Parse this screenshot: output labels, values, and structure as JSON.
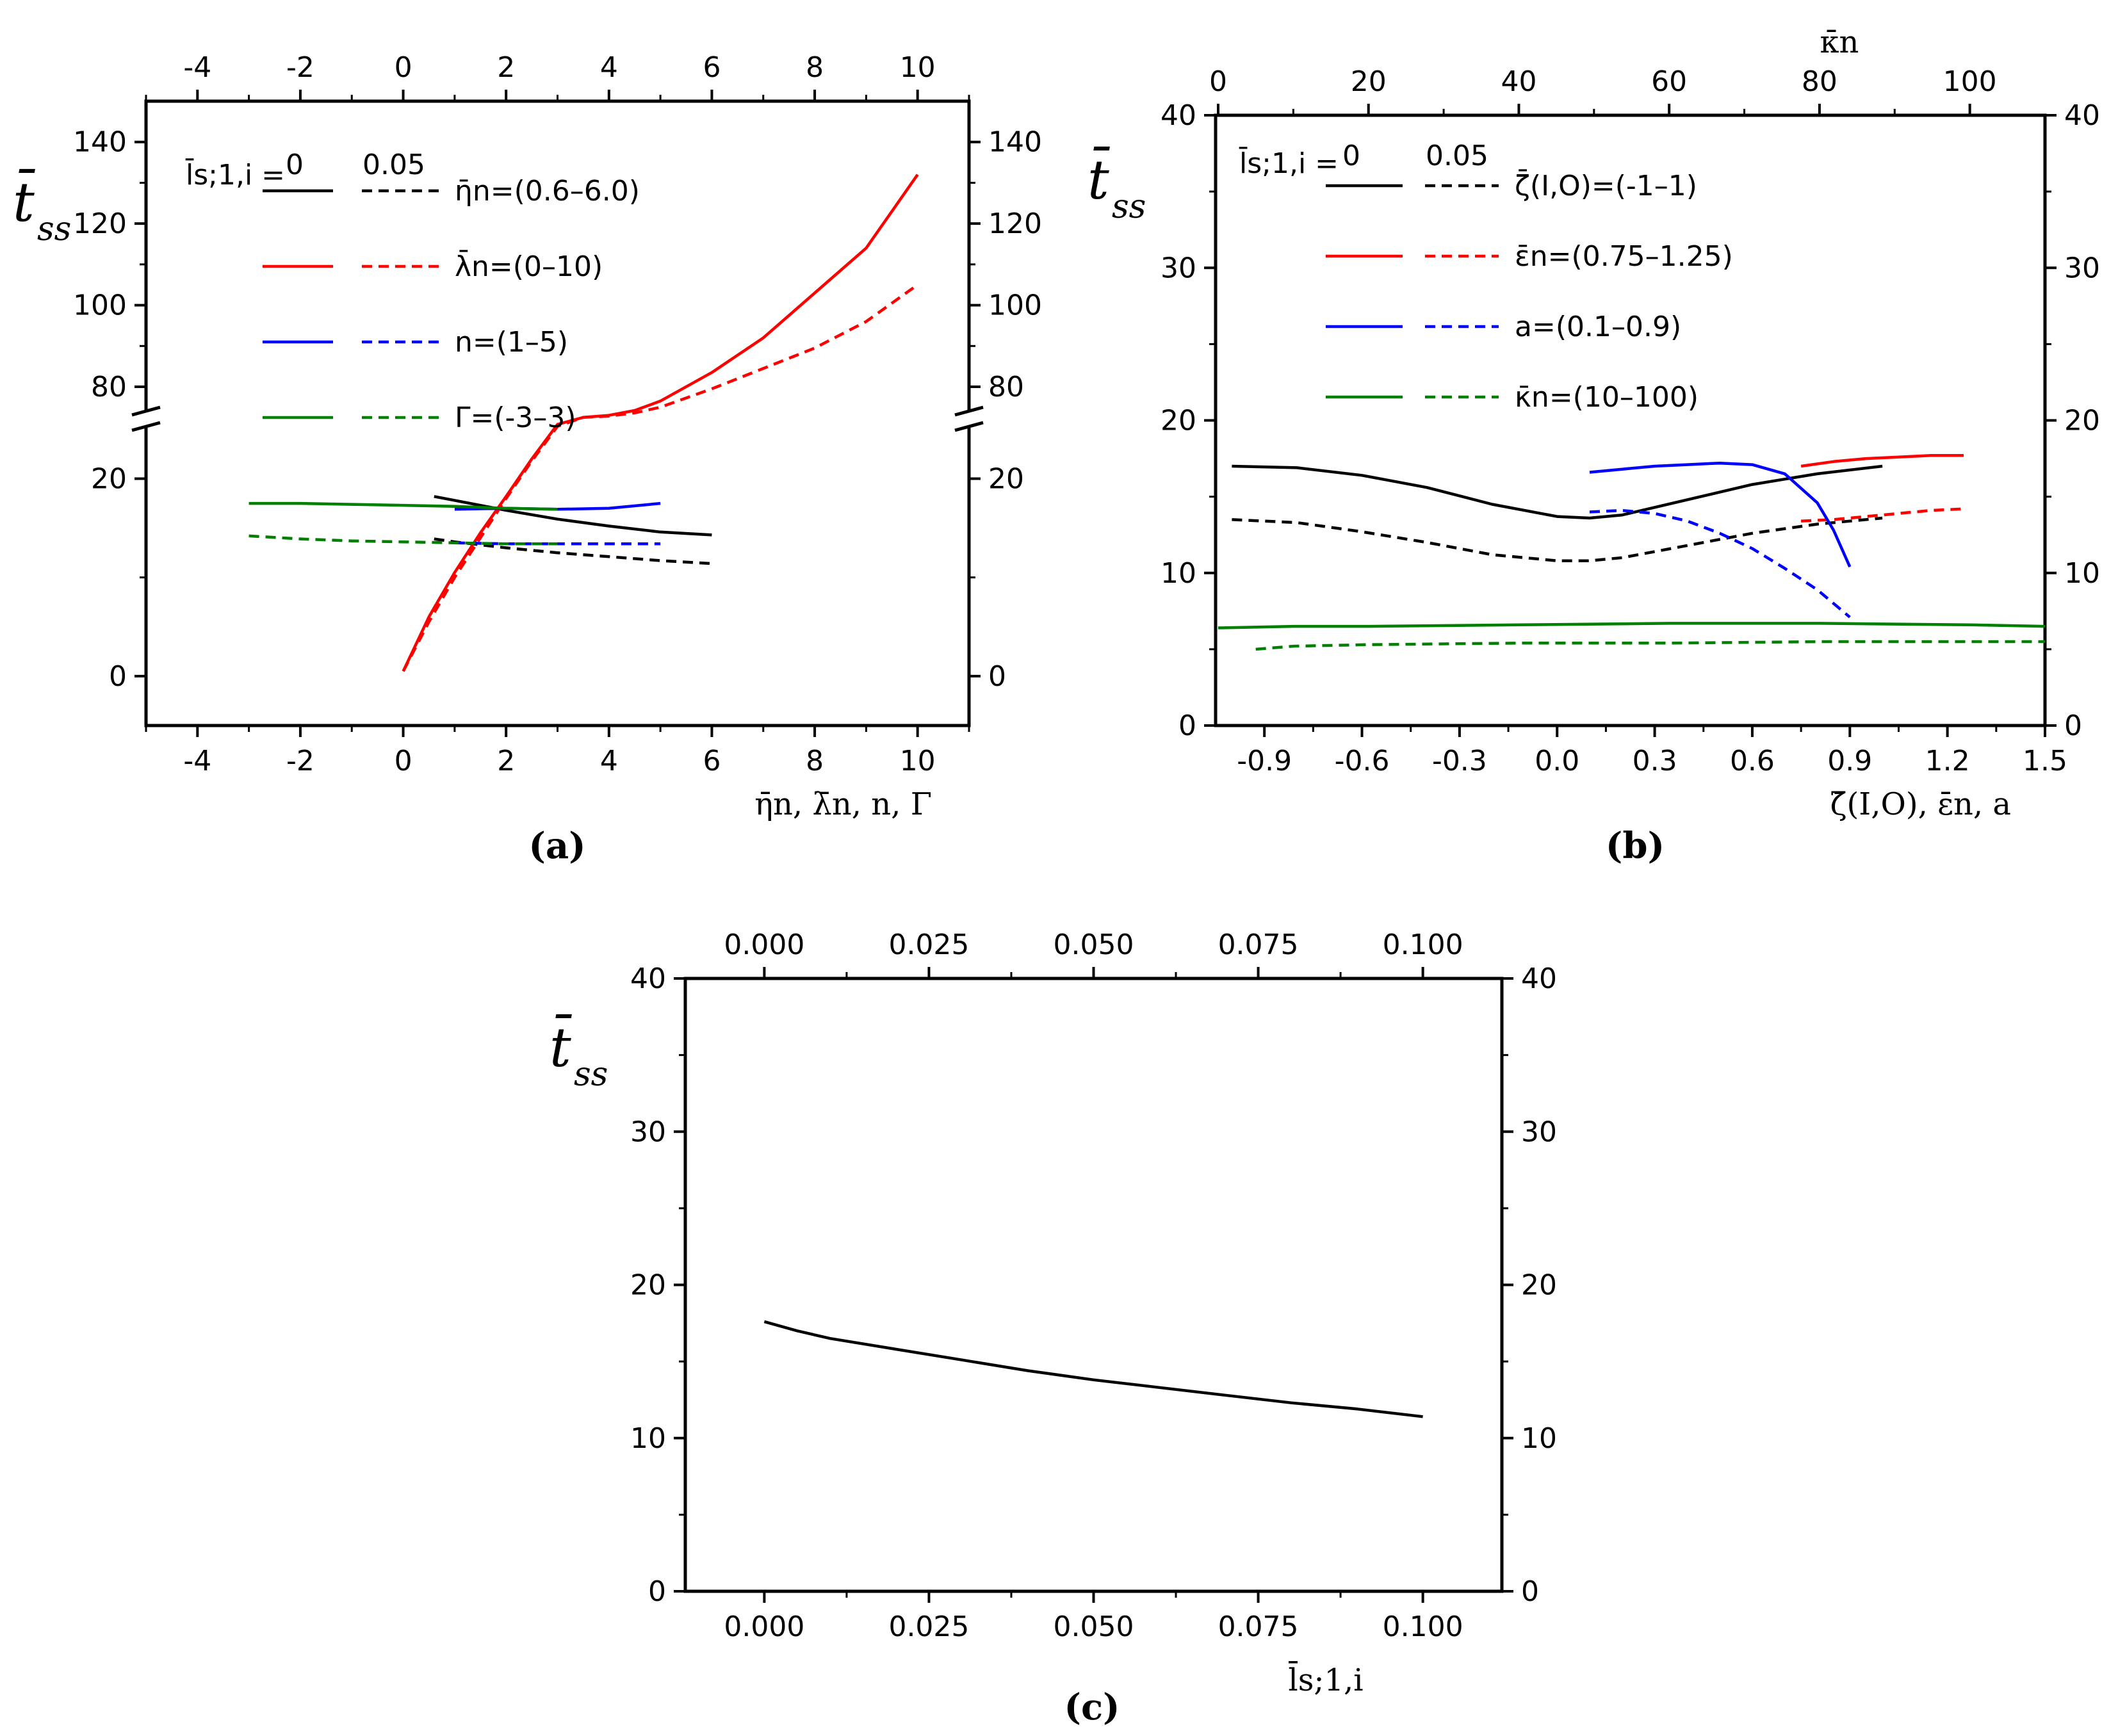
{
  "chart_data": [
    {
      "id": "a",
      "type": "line",
      "caption": "(a)",
      "ylabel": "t̄",
      "ylabel_sub": "ss",
      "xlabel": "η̄n, λ̄n, n, Γ",
      "x_ticks": [
        "-4",
        "-2",
        "0",
        "2",
        "4",
        "6",
        "8",
        "10"
      ],
      "x_tick_values": [
        -4,
        -2,
        0,
        2,
        4,
        6,
        8,
        10
      ],
      "xlim": [
        -5,
        11
      ],
      "y_lower_ticks": [
        "0",
        "20"
      ],
      "y_lower_tick_values": [
        0,
        20
      ],
      "y_lower_lim": [
        -5,
        26
      ],
      "y_upper_ticks": [
        "80",
        "100",
        "120",
        "140"
      ],
      "y_upper_tick_values": [
        80,
        100,
        120,
        140
      ],
      "y_upper_lim": [
        72,
        150
      ],
      "axis_break": "between 20 and 80",
      "legend_header": {
        "param": "l̄s;1,i =",
        "solid": "0",
        "dashed": "0.05"
      },
      "legend": [
        "η̄n=(0.6–6.0)",
        "λ̄n=(0–10)",
        "n=(1–5)",
        "Γ=(-3–3)"
      ],
      "series": [
        {
          "name": "η̄n=(0.6–6.0), l̄=0",
          "color": "#000000",
          "dashed": false,
          "x": [
            0.6,
            1,
            2,
            3,
            4,
            5,
            6
          ],
          "y": [
            18.2,
            17.8,
            16.8,
            15.9,
            15.2,
            14.6,
            14.3
          ]
        },
        {
          "name": "η̄n=(0.6–6.0), l̄=0.05",
          "color": "#000000",
          "dashed": true,
          "x": [
            0.6,
            1,
            2,
            3,
            4,
            5,
            6
          ],
          "y": [
            13.9,
            13.6,
            13.0,
            12.5,
            12.1,
            11.7,
            11.4
          ]
        },
        {
          "name": "λ̄n=(0–10), l̄=0",
          "color": "#ff0000",
          "dashed": false,
          "x": [
            0,
            0.5,
            1,
            1.5,
            2,
            2.5,
            3,
            3.5,
            4,
            4.5,
            5,
            6,
            7,
            8,
            9,
            10
          ],
          "y": [
            0.5,
            6,
            10.5,
            14.5,
            18.2,
            22,
            25.5,
            72.5,
            73,
            74.2,
            76.5,
            83.5,
            92,
            103,
            114,
            132
          ]
        },
        {
          "name": "λ̄n=(0–10), l̄=0.05",
          "color": "#ff0000",
          "dashed": true,
          "x": [
            0,
            0.5,
            1,
            1.5,
            2,
            2.5,
            3,
            3.5,
            4,
            4.5,
            5,
            6,
            7,
            8,
            9,
            10
          ],
          "y": [
            0.5,
            5.5,
            10,
            14,
            18,
            21.8,
            25.3,
            72.5,
            72.8,
            73.6,
            75,
            79.5,
            84.5,
            89.5,
            96,
            105
          ]
        },
        {
          "name": "n=(1–5), l̄=0",
          "color": "#0000ff",
          "dashed": false,
          "x": [
            1,
            2,
            3,
            4,
            5
          ],
          "y": [
            16.9,
            17,
            16.9,
            17,
            17.5
          ]
        },
        {
          "name": "n=(1–5), l̄=0.05",
          "color": "#0000ff",
          "dashed": true,
          "x": [
            1,
            2,
            3,
            4,
            5
          ],
          "y": [
            13.5,
            13.4,
            13.4,
            13.4,
            13.4
          ]
        },
        {
          "name": "Γ=(-3–3), l̄=0",
          "color": "#007f00",
          "dashed": false,
          "x": [
            -3,
            -2,
            -1,
            0,
            1,
            2,
            3
          ],
          "y": [
            17.5,
            17.5,
            17.4,
            17.3,
            17.2,
            17.0,
            16.9
          ]
        },
        {
          "name": "Γ=(-3–3), l̄=0.05",
          "color": "#007f00",
          "dashed": true,
          "x": [
            -3,
            -2,
            -1,
            0,
            1,
            2,
            3
          ],
          "y": [
            14.2,
            13.9,
            13.7,
            13.6,
            13.5,
            13.4,
            13.4
          ]
        }
      ]
    },
    {
      "id": "b",
      "type": "line",
      "caption": "(b)",
      "ylabel": "t̄",
      "ylabel_sub": "ss",
      "xlabel": "ζ̄(I,O), ε̄n, a",
      "top_xlabel": "κ̄n",
      "x_ticks": [
        "-0.9",
        "-0.6",
        "-0.3",
        "0.0",
        "0.3",
        "0.6",
        "0.9",
        "1.2",
        "1.5"
      ],
      "x_tick_values": [
        -0.9,
        -0.6,
        -0.3,
        0,
        0.3,
        0.6,
        0.9,
        1.2,
        1.5
      ],
      "xlim": [
        -1.05,
        1.5
      ],
      "top_ticks": [
        "0",
        "20",
        "40",
        "60",
        "80",
        "100"
      ],
      "top_tick_values": [
        0,
        20,
        40,
        60,
        80,
        100
      ],
      "top_lim": [
        0,
        110
      ],
      "y_ticks": [
        "0",
        "10",
        "20",
        "30",
        "40"
      ],
      "y_tick_values": [
        0,
        10,
        20,
        30,
        40
      ],
      "ylim": [
        0,
        40
      ],
      "legend_header": {
        "param": "l̄s;1,i =",
        "solid": "0",
        "dashed": "0.05"
      },
      "legend": [
        "ζ̄(I,O)=(-1–1)",
        "ε̄n=(0.75–1.25)",
        "a=(0.1–0.9)",
        "κ̄n=(10–100)"
      ],
      "series": [
        {
          "name": "ζ̄=(-1–1), l̄=0",
          "color": "#000000",
          "dashed": false,
          "axis": "bottom",
          "x": [
            -1,
            -0.8,
            -0.6,
            -0.4,
            -0.2,
            0,
            0.1,
            0.2,
            0.4,
            0.6,
            0.8,
            1
          ],
          "y": [
            17,
            16.9,
            16.4,
            15.6,
            14.5,
            13.7,
            13.6,
            13.8,
            14.8,
            15.8,
            16.5,
            17
          ]
        },
        {
          "name": "ζ̄=(-1–1), l̄=0.05",
          "color": "#000000",
          "dashed": true,
          "axis": "bottom",
          "x": [
            -1,
            -0.8,
            -0.6,
            -0.4,
            -0.2,
            0,
            0.1,
            0.2,
            0.4,
            0.6,
            0.8,
            1
          ],
          "y": [
            13.5,
            13.3,
            12.7,
            12,
            11.2,
            10.8,
            10.8,
            11,
            11.8,
            12.6,
            13.2,
            13.6
          ]
        },
        {
          "name": "ε̄n=(0.75–1.25), l̄=0",
          "color": "#ff0000",
          "dashed": false,
          "axis": "bottom",
          "x": [
            0.75,
            0.85,
            0.95,
            1.05,
            1.15,
            1.25
          ],
          "y": [
            17,
            17.3,
            17.5,
            17.6,
            17.7,
            17.7
          ]
        },
        {
          "name": "ε̄n=(0.75–1.25), l̄=0.05",
          "color": "#ff0000",
          "dashed": true,
          "axis": "bottom",
          "x": [
            0.75,
            0.85,
            0.95,
            1.05,
            1.15,
            1.25
          ],
          "y": [
            13.4,
            13.5,
            13.7,
            13.9,
            14.1,
            14.2
          ]
        },
        {
          "name": "a=(0.1–0.9), l̄=0",
          "color": "#0000ff",
          "dashed": false,
          "axis": "bottom",
          "x": [
            0.1,
            0.2,
            0.3,
            0.4,
            0.5,
            0.6,
            0.7,
            0.8,
            0.85,
            0.9
          ],
          "y": [
            16.6,
            16.8,
            17,
            17.1,
            17.2,
            17.1,
            16.5,
            14.6,
            12.8,
            10.4
          ]
        },
        {
          "name": "a=(0.1–0.9), l̄=0.05",
          "color": "#0000ff",
          "dashed": true,
          "axis": "bottom",
          "x": [
            0.1,
            0.2,
            0.3,
            0.4,
            0.5,
            0.6,
            0.7,
            0.8,
            0.9
          ],
          "y": [
            14,
            14.1,
            13.9,
            13.4,
            12.6,
            11.6,
            10.3,
            8.9,
            7.1
          ]
        },
        {
          "name": "κ̄n=(10–100), l̄=0",
          "color": "#007f00",
          "dashed": false,
          "axis": "top",
          "x": [
            0,
            10,
            20,
            40,
            60,
            80,
            100,
            110
          ],
          "y": [
            6.4,
            6.5,
            6.5,
            6.6,
            6.7,
            6.7,
            6.6,
            6.5
          ]
        },
        {
          "name": "κ̄n=(10–100), l̄=0.05",
          "color": "#007f00",
          "dashed": true,
          "axis": "top",
          "x": [
            5,
            10,
            20,
            40,
            60,
            80,
            100,
            110
          ],
          "y": [
            5,
            5.2,
            5.3,
            5.4,
            5.4,
            5.5,
            5.5,
            5.5
          ]
        }
      ]
    },
    {
      "id": "c",
      "type": "line",
      "caption": "(c)",
      "ylabel": "t̄",
      "ylabel_sub": "ss",
      "xlabel": "l̄s;1,i",
      "x_ticks": [
        "0.000",
        "0.025",
        "0.050",
        "0.075",
        "0.100"
      ],
      "x_tick_values": [
        0,
        0.025,
        0.05,
        0.075,
        0.1
      ],
      "xlim": [
        -0.012,
        0.112
      ],
      "y_ticks": [
        "0",
        "10",
        "20",
        "30",
        "40"
      ],
      "y_tick_values": [
        0,
        10,
        20,
        30,
        40
      ],
      "ylim": [
        0,
        40
      ],
      "series": [
        {
          "name": "t̄ss vs l̄s;1,i",
          "color": "#000000",
          "dashed": false,
          "x": [
            0,
            0.005,
            0.01,
            0.02,
            0.03,
            0.04,
            0.05,
            0.06,
            0.07,
            0.08,
            0.09,
            0.1
          ],
          "y": [
            17.6,
            17,
            16.5,
            15.8,
            15.1,
            14.4,
            13.8,
            13.3,
            12.8,
            12.3,
            11.9,
            11.4
          ]
        }
      ]
    }
  ]
}
